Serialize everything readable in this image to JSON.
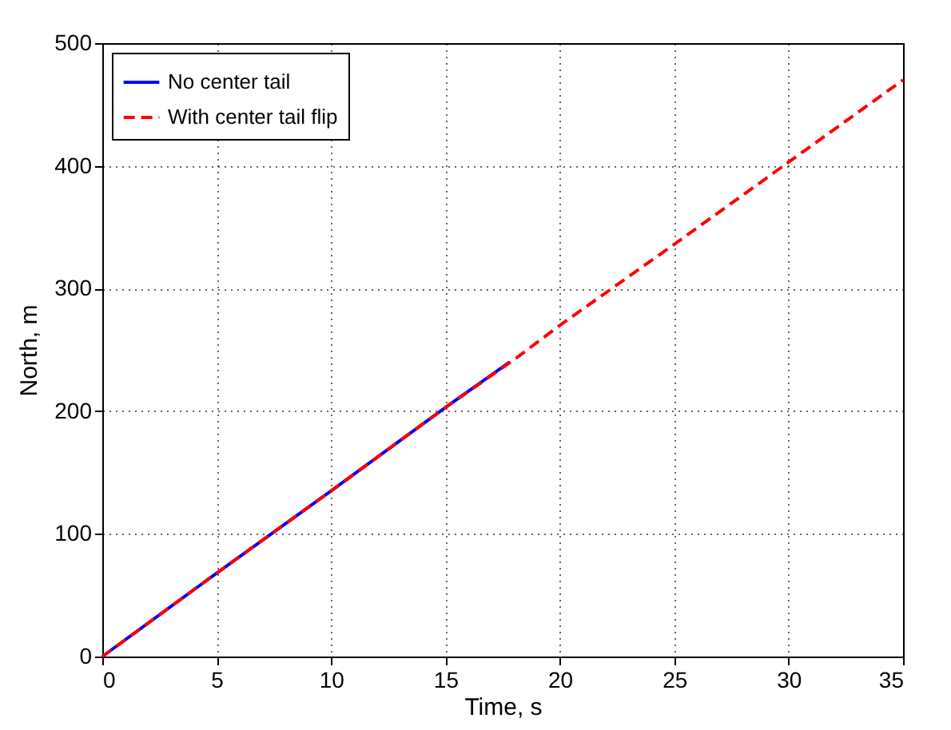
{
  "chart_data": {
    "type": "line",
    "xlabel": "Time, s",
    "ylabel": "North, m",
    "xlim": [
      0,
      35
    ],
    "xticks": [
      0,
      5,
      10,
      15,
      20,
      25,
      30,
      35
    ],
    "ylim": [
      0,
      500
    ],
    "yticks": [
      0,
      100,
      200,
      300,
      400,
      500
    ],
    "grid": true,
    "legend": "top left",
    "series": [
      {
        "name": "No center tail",
        "color": "#0000ff",
        "line_style": "solid",
        "x": [
          0,
          5,
          10,
          15,
          17.8
        ],
        "values": [
          0,
          68,
          135,
          203,
          240
        ]
      },
      {
        "name": "With center tail flip",
        "color": "#ff0000",
        "line_style": "dashed",
        "x": [
          0,
          5,
          10,
          15,
          18,
          20,
          25,
          30,
          35
        ],
        "values": [
          0,
          68,
          135,
          203,
          242,
          270,
          336,
          403,
          470
        ]
      }
    ]
  }
}
